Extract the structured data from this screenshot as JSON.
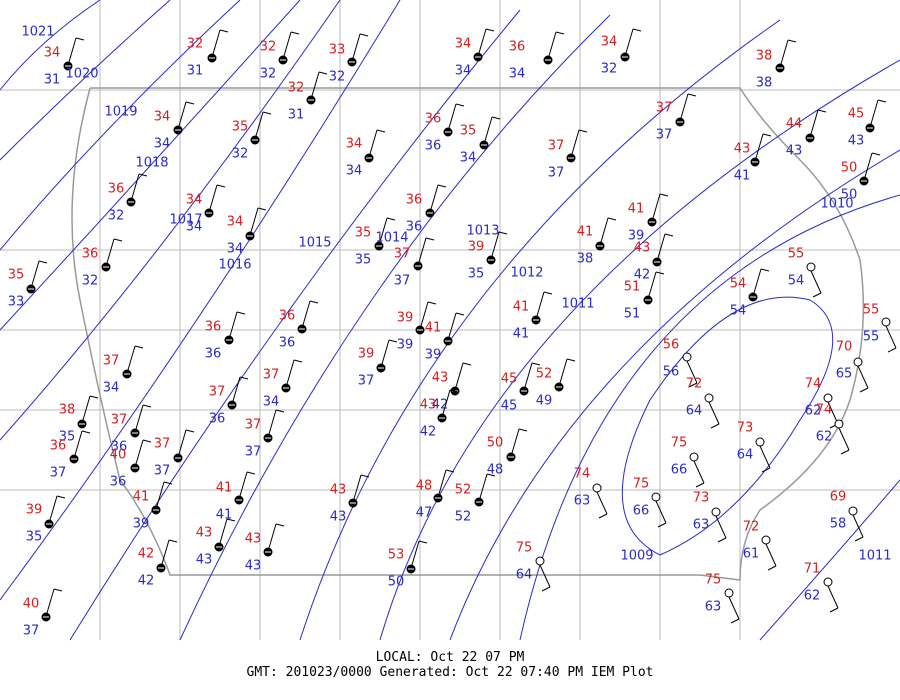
{
  "map": {
    "stations": [
      {
        "temp": 34,
        "dewpoint": 31
      },
      {
        "temp": 32,
        "dewpoint": 31
      },
      {
        "temp": 32,
        "dewpoint": 32
      },
      {
        "temp": 33,
        "dewpoint": 32
      },
      {
        "temp": 34,
        "dewpoint": 34
      },
      {
        "temp": 36,
        "dewpoint": 34
      },
      {
        "temp": 34,
        "dewpoint": 32
      },
      {
        "temp": 38,
        "dewpoint": 38
      },
      {
        "temp": 32,
        "dewpoint": 31
      },
      {
        "temp": 34,
        "dewpoint": 34
      },
      {
        "temp": 35,
        "dewpoint": 32
      },
      {
        "temp": 36,
        "dewpoint": 36
      },
      {
        "temp": 35,
        "dewpoint": 34
      },
      {
        "temp": 37,
        "dewpoint": 37
      },
      {
        "temp": 44,
        "dewpoint": 43
      },
      {
        "temp": 45,
        "dewpoint": 43
      },
      {
        "temp": 43,
        "dewpoint": 41
      },
      {
        "temp": 34,
        "dewpoint": 34
      },
      {
        "temp": 37,
        "dewpoint": 37
      },
      {
        "temp": 50,
        "dewpoint": 50
      },
      {
        "temp": 36,
        "dewpoint": 32
      },
      {
        "temp": 34,
        "dewpoint": 34
      },
      {
        "temp": 36,
        "dewpoint": 36
      },
      {
        "temp": 34,
        "dewpoint": 34
      },
      {
        "temp": 35,
        "dewpoint": 35
      },
      {
        "temp": 39,
        "dewpoint": 35
      },
      {
        "temp": 41,
        "dewpoint": 39
      },
      {
        "temp": 41,
        "dewpoint": 38
      },
      {
        "temp": 43,
        "dewpoint": 42
      },
      {
        "temp": 37,
        "dewpoint": 37
      },
      {
        "temp": 36,
        "dewpoint": 32
      },
      {
        "temp": 35,
        "dewpoint": 33
      },
      {
        "temp": 51,
        "dewpoint": 51
      },
      {
        "temp": 54,
        "dewpoint": 54
      },
      {
        "temp": 55,
        "dewpoint": 54
      },
      {
        "temp": 41,
        "dewpoint": 41
      },
      {
        "temp": 36,
        "dewpoint": 36
      },
      {
        "temp": 36,
        "dewpoint": 36
      },
      {
        "temp": 39,
        "dewpoint": 39
      },
      {
        "temp": 41,
        "dewpoint": 39
      },
      {
        "temp": 55,
        "dewpoint": 55
      },
      {
        "temp": 39,
        "dewpoint": 37
      },
      {
        "temp": 56,
        "dewpoint": 56
      },
      {
        "temp": 70,
        "dewpoint": 65
      },
      {
        "temp": 37,
        "dewpoint": 34
      },
      {
        "temp": 37,
        "dewpoint": 34
      },
      {
        "temp": 45,
        "dewpoint": 45
      },
      {
        "temp": 52,
        "dewpoint": 49
      },
      {
        "temp": 43,
        "dewpoint": 42
      },
      {
        "temp": 43,
        "dewpoint": 42
      },
      {
        "temp": 72,
        "dewpoint": 64
      },
      {
        "temp": 74,
        "dewpoint": 62
      },
      {
        "temp": 37,
        "dewpoint": 36
      },
      {
        "temp": 38,
        "dewpoint": 35
      },
      {
        "temp": 74,
        "dewpoint": 62
      },
      {
        "temp": 37,
        "dewpoint": 36
      },
      {
        "temp": 40,
        "dewpoint": 36
      },
      {
        "temp": 37,
        "dewpoint": 37
      },
      {
        "temp": 36,
        "dewpoint": 37
      },
      {
        "temp": 37,
        "dewpoint": 37
      },
      {
        "temp": 73,
        "dewpoint": 64
      },
      {
        "temp": 75,
        "dewpoint": 66
      },
      {
        "temp": 50,
        "dewpoint": 48
      },
      {
        "temp": 74,
        "dewpoint": 63
      },
      {
        "temp": 75,
        "dewpoint": 66
      },
      {
        "temp": 73,
        "dewpoint": 63
      },
      {
        "temp": 41,
        "dewpoint": 41
      },
      {
        "temp": 43,
        "dewpoint": 43
      },
      {
        "temp": 48,
        "dewpoint": 47
      },
      {
        "temp": 52,
        "dewpoint": 52
      },
      {
        "temp": 41,
        "dewpoint": 39
      },
      {
        "temp": 39,
        "dewpoint": 35
      },
      {
        "temp": 69,
        "dewpoint": 58
      },
      {
        "temp": 43,
        "dewpoint": 43
      },
      {
        "temp": 43,
        "dewpoint": 43
      },
      {
        "temp": 72,
        "dewpoint": 61
      },
      {
        "temp": 42,
        "dewpoint": 42
      },
      {
        "temp": 53,
        "dewpoint": 50
      },
      {
        "temp": 75,
        "dewpoint": 64
      },
      {
        "temp": 75,
        "dewpoint": 63
      },
      {
        "temp": 71,
        "dewpoint": 62
      },
      {
        "temp": 40,
        "dewpoint": 37
      }
    ],
    "isobars": [
      {
        "label": "1021"
      },
      {
        "label": "1020"
      },
      {
        "label": "1019"
      },
      {
        "label": "1018"
      },
      {
        "label": "1017"
      },
      {
        "label": "1016"
      },
      {
        "label": "1015"
      },
      {
        "label": "1014"
      },
      {
        "label": "1013"
      },
      {
        "label": "1012"
      },
      {
        "label": "1011"
      },
      {
        "label": "1010"
      },
      {
        "label": "1009"
      },
      {
        "label": "1011"
      }
    ],
    "footer": {
      "local": "LOCAL: Oct 22 07 PM",
      "gmt": "GMT: 201023/0000 Generated: Oct 22 07:40 PM IEM Plot"
    }
  }
}
